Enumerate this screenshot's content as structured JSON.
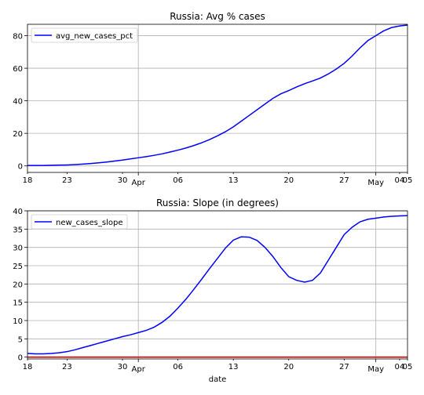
{
  "chart_data": [
    {
      "type": "line",
      "title": "Russia: Avg % cases",
      "xlabel": "",
      "ylabel": "",
      "xlim": [
        0,
        48
      ],
      "ylim": [
        -4,
        87
      ],
      "x_ticks": [
        {
          "pos": 0,
          "label": "18"
        },
        {
          "pos": 5,
          "label": "23"
        },
        {
          "pos": 12,
          "label": "30"
        },
        {
          "pos": 14,
          "label": "Apr"
        },
        {
          "pos": 19,
          "label": "06"
        },
        {
          "pos": 26,
          "label": "13"
        },
        {
          "pos": 33,
          "label": "20"
        },
        {
          "pos": 40,
          "label": "27"
        },
        {
          "pos": 44,
          "label": "May"
        },
        {
          "pos": 47,
          "label": "04"
        },
        {
          "pos": 48,
          "label": "05"
        }
      ],
      "y_ticks": [
        0,
        20,
        40,
        60,
        80
      ],
      "major_gridlines_x": [
        14,
        44
      ],
      "grid": true,
      "legend": "top-left",
      "series": [
        {
          "name": "avg_new_cases_pct",
          "color": "#0000ff",
          "x": [
            0,
            1,
            2,
            3,
            4,
            5,
            6,
            7,
            8,
            9,
            10,
            11,
            12,
            13,
            14,
            15,
            16,
            17,
            18,
            19,
            20,
            21,
            22,
            23,
            24,
            25,
            26,
            27,
            28,
            29,
            30,
            31,
            32,
            33,
            34,
            35,
            36,
            37,
            38,
            39,
            40,
            41,
            42,
            43,
            44,
            45,
            46,
            47,
            48
          ],
          "y": [
            0.3,
            0.3,
            0.3,
            0.4,
            0.5,
            0.6,
            0.8,
            1.1,
            1.5,
            1.9,
            2.4,
            3.0,
            3.6,
            4.3,
            5.0,
            5.7,
            6.5,
            7.4,
            8.5,
            9.7,
            11.0,
            12.5,
            14.2,
            16.2,
            18.5,
            21.0,
            24.0,
            27.5,
            31.0,
            34.5,
            38.0,
            41.5,
            44.3,
            46.3,
            48.5,
            50.5,
            52.2,
            54.0,
            56.5,
            59.5,
            63.0,
            67.5,
            72.5,
            77.0,
            80.0,
            83.0,
            85.0,
            86.0,
            86.5
          ]
        }
      ]
    },
    {
      "type": "line",
      "title": "Russia: Slope (in degrees)",
      "xlabel": "date",
      "ylabel": "",
      "xlim": [
        0,
        48
      ],
      "ylim": [
        -0.5,
        40
      ],
      "x_ticks": [
        {
          "pos": 0,
          "label": "18"
        },
        {
          "pos": 5,
          "label": "23"
        },
        {
          "pos": 12,
          "label": "30"
        },
        {
          "pos": 14,
          "label": "Apr"
        },
        {
          "pos": 19,
          "label": "06"
        },
        {
          "pos": 26,
          "label": "13"
        },
        {
          "pos": 33,
          "label": "20"
        },
        {
          "pos": 40,
          "label": "27"
        },
        {
          "pos": 44,
          "label": "May"
        },
        {
          "pos": 47,
          "label": "04"
        },
        {
          "pos": 48,
          "label": "05"
        }
      ],
      "y_ticks": [
        0,
        5,
        10,
        15,
        20,
        25,
        30,
        35,
        40
      ],
      "major_gridlines_x": [
        14,
        44
      ],
      "grid": true,
      "legend": "top-left",
      "reference_line": {
        "y": 0,
        "color": "#cc0000"
      },
      "series": [
        {
          "name": "new_cases_slope",
          "color": "#0000ff",
          "x": [
            0,
            1,
            2,
            3,
            4,
            5,
            6,
            7,
            8,
            9,
            10,
            11,
            12,
            13,
            14,
            15,
            16,
            17,
            18,
            19,
            20,
            21,
            22,
            23,
            24,
            25,
            26,
            27,
            28,
            29,
            30,
            31,
            32,
            33,
            34,
            35,
            36,
            37,
            38,
            39,
            40,
            41,
            42,
            43,
            44,
            45,
            46,
            47,
            48
          ],
          "y": [
            1.0,
            0.9,
            0.9,
            1.0,
            1.2,
            1.5,
            2.0,
            2.6,
            3.2,
            3.8,
            4.4,
            5.0,
            5.6,
            6.1,
            6.7,
            7.3,
            8.2,
            9.5,
            11.2,
            13.4,
            15.8,
            18.5,
            21.3,
            24.2,
            27.0,
            29.8,
            32.0,
            32.9,
            32.8,
            31.9,
            30.0,
            27.5,
            24.5,
            22.0,
            21.0,
            20.5,
            21.0,
            23.0,
            26.5,
            30.0,
            33.5,
            35.5,
            37.0,
            37.7,
            38.0,
            38.3,
            38.5,
            38.6,
            38.7
          ]
        }
      ]
    }
  ]
}
